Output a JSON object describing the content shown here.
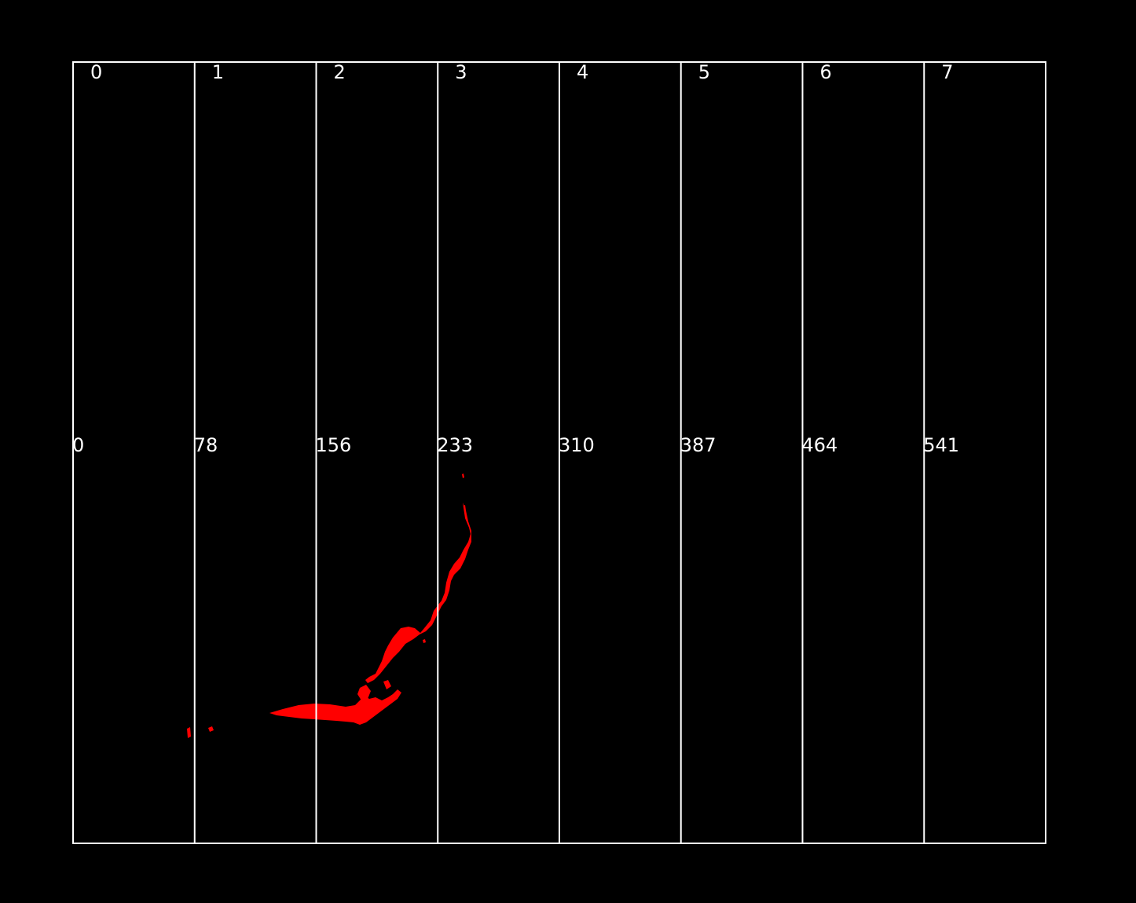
{
  "colors": {
    "background": "#000000",
    "grid_line": "#ffffff",
    "label_text": "#ffffff",
    "feature_fill": "#ff0000"
  },
  "columns": [
    {
      "index": "0",
      "offset": "0"
    },
    {
      "index": "1",
      "offset": "78"
    },
    {
      "index": "2",
      "offset": "156"
    },
    {
      "index": "3",
      "offset": "233"
    },
    {
      "index": "4",
      "offset": "310"
    },
    {
      "index": "5",
      "offset": "387"
    },
    {
      "index": "6",
      "offset": "464"
    },
    {
      "index": "7",
      "offset": "541"
    }
  ]
}
